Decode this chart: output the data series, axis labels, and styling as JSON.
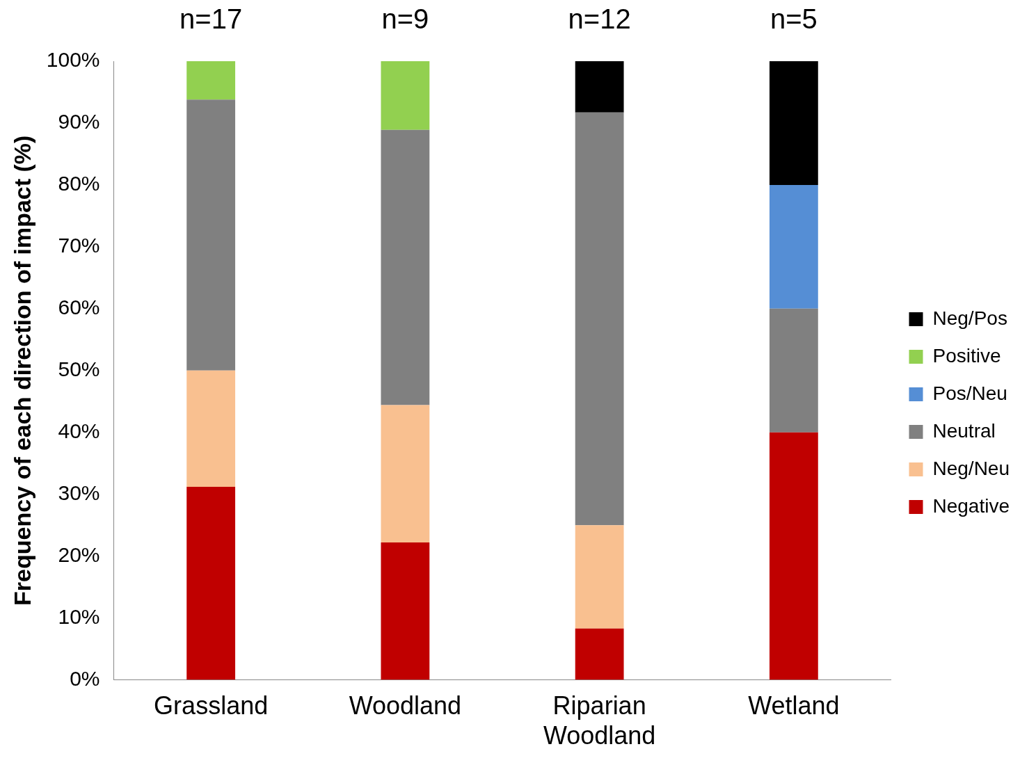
{
  "chart_data": {
    "type": "bar",
    "stacked": true,
    "ylabel": "Frequency of each direction of impact (%)",
    "categories": [
      "Grassland",
      "Woodland",
      "Riparian Woodland",
      "Wetland"
    ],
    "series": [
      {
        "name": "Negative",
        "color": "#c00000",
        "values": [
          31.2,
          22.2,
          8.3,
          40
        ]
      },
      {
        "name": "Neg/Neu",
        "color": "#f9c090",
        "values": [
          18.8,
          22.2,
          16.7,
          0
        ]
      },
      {
        "name": "Neutral",
        "color": "#808080",
        "values": [
          43.8,
          44.5,
          66.7,
          20
        ]
      },
      {
        "name": "Pos/Neu",
        "color": "#558ed5",
        "values": [
          0,
          0,
          0,
          20
        ]
      },
      {
        "name": "Positive",
        "color": "#92d050",
        "values": [
          6.2,
          11.1,
          0,
          0
        ]
      },
      {
        "name": "Neg/Pos",
        "color": "#000000",
        "values": [
          0,
          0,
          8.3,
          20
        ]
      }
    ],
    "ylim": [
      0,
      100
    ],
    "yticks": [
      {
        "value": 0,
        "label": "0%"
      },
      {
        "value": 10,
        "label": "10%"
      },
      {
        "value": 20,
        "label": "20%"
      },
      {
        "value": 30,
        "label": "30%"
      },
      {
        "value": 40,
        "label": "40%"
      },
      {
        "value": 50,
        "label": "50%"
      },
      {
        "value": 60,
        "label": "60%"
      },
      {
        "value": 70,
        "label": "70%"
      },
      {
        "value": 80,
        "label": "80%"
      },
      {
        "value": 90,
        "label": "90%"
      },
      {
        "value": 100,
        "label": "100%"
      }
    ],
    "annotations": [
      "n=17",
      "n=9",
      "n=12",
      "n=5"
    ],
    "grid": false,
    "legend": "right"
  }
}
